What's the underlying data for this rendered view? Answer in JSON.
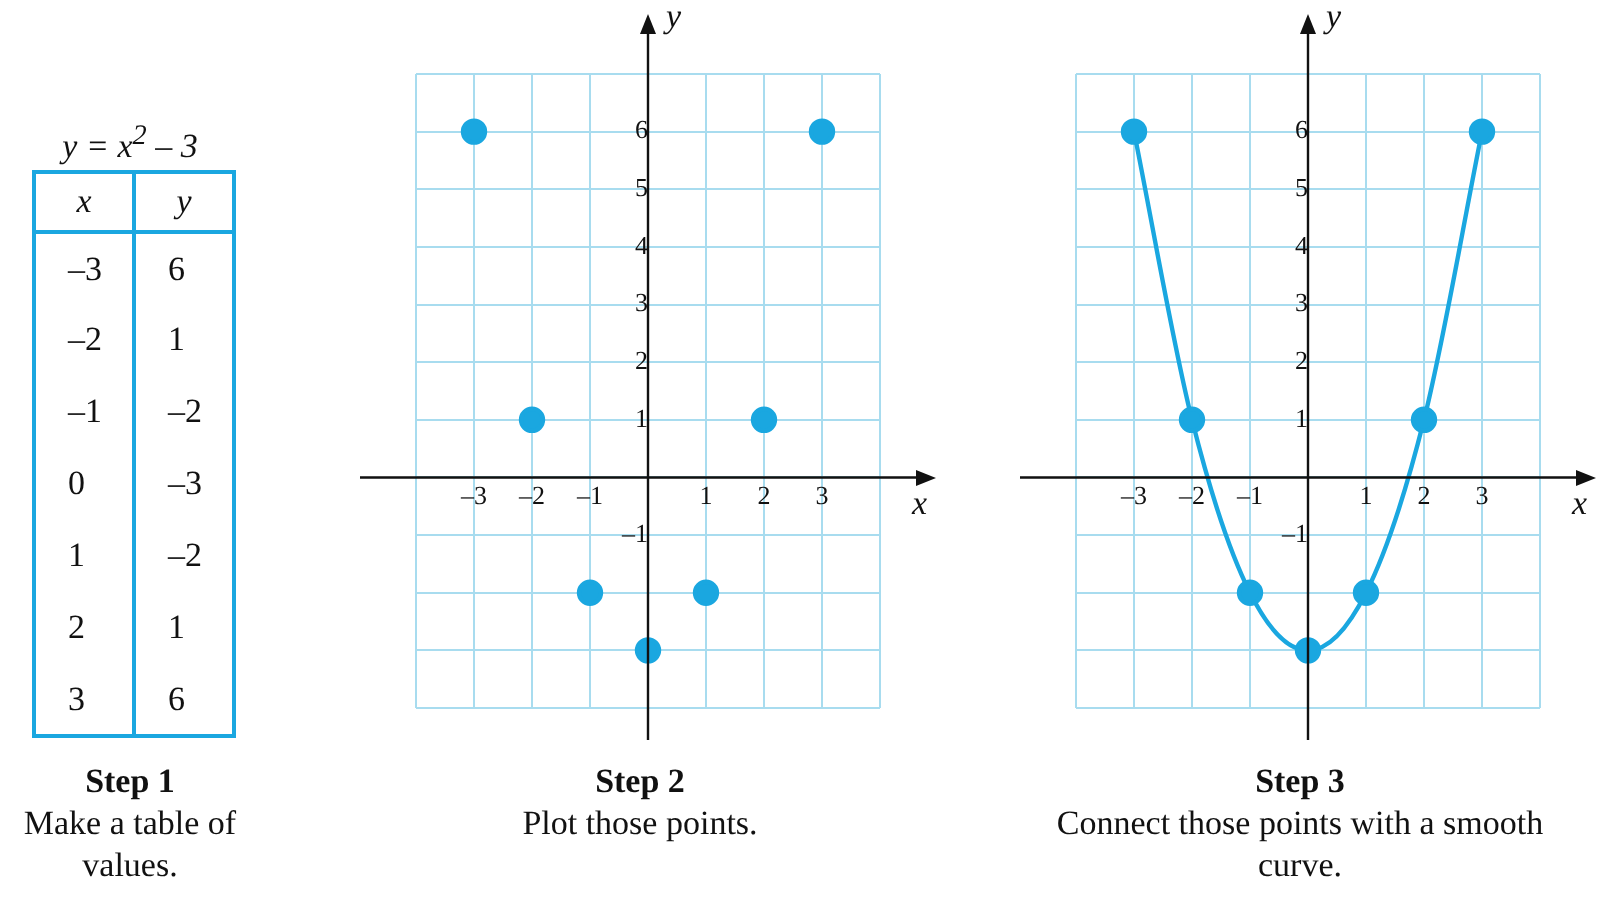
{
  "chart_data": [
    {
      "type": "other",
      "title": "y = x$^{2}$ – 3",
      "xlabel": "x",
      "ylabel": "y",
      "categories": [
        "–3",
        "–2",
        "–1",
        "0",
        "1",
        "2",
        "3"
      ],
      "value_labels": [
        "6",
        "1",
        "–2",
        "–3",
        "–2",
        "1",
        "6"
      ],
      "color": "#1aa7e0",
      "annotations": [
        "Step 1",
        "Make a table of values."
      ]
    },
    {
      "type": "scatter",
      "xlabel": "x",
      "ylabel": "y",
      "series": [
        {
          "color": "#1aa7e0",
          "x": [
            -3,
            -2,
            -1,
            0,
            1,
            2,
            3
          ],
          "values": [
            6,
            1,
            -2,
            -3,
            -2,
            1,
            6
          ]
        }
      ],
      "marker": "circle",
      "grid": true,
      "xlim": [
        -4,
        4
      ],
      "ylim": [
        -4,
        7
      ],
      "xticks": [
        {
          "value": -4,
          "label": null
        },
        {
          "value": -3,
          "label": "–3"
        },
        {
          "value": -2,
          "label": "–2"
        },
        {
          "value": -1,
          "label": "–1"
        },
        {
          "value": 0,
          "label": null
        },
        1,
        2,
        3,
        {
          "value": 4,
          "label": null
        }
      ],
      "yticks": [
        {
          "value": -4,
          "label": null
        },
        {
          "value": -3,
          "label": null
        },
        {
          "value": -2,
          "label": null
        },
        {
          "value": -1,
          "label": "–1"
        },
        {
          "value": 0,
          "label": null
        },
        1,
        2,
        3,
        4,
        5,
        6,
        {
          "value": 7,
          "label": null
        }
      ],
      "annotations": [
        "Step 2",
        "Plot those points."
      ]
    },
    {
      "type": "line",
      "xlabel": "x",
      "ylabel": "y",
      "series": [
        {
          "color": "#1aa7e0",
          "x": [
            -3,
            -2,
            -1,
            0,
            1,
            2,
            3
          ],
          "values": [
            6,
            1,
            -2,
            -3,
            -2,
            1,
            6
          ]
        }
      ],
      "marker": "circle",
      "line_style": "solid",
      "grid": true,
      "xlim": [
        -4,
        4
      ],
      "ylim": [
        -4,
        7
      ],
      "xticks": [
        {
          "value": -4,
          "label": null
        },
        {
          "value": -3,
          "label": "–3"
        },
        {
          "value": -2,
          "label": "–2"
        },
        {
          "value": -1,
          "label": "–1"
        },
        {
          "value": 0,
          "label": null
        },
        1,
        2,
        3,
        {
          "value": 4,
          "label": null
        }
      ],
      "yticks": [
        {
          "value": -4,
          "label": null
        },
        {
          "value": -3,
          "label": null
        },
        {
          "value": -2,
          "label": null
        },
        {
          "value": -1,
          "label": "–1"
        },
        {
          "value": 0,
          "label": null
        },
        1,
        2,
        3,
        4,
        5,
        6,
        {
          "value": 7,
          "label": null
        }
      ],
      "annotations": [
        "Step 3",
        "Connect those points with a smooth curve."
      ]
    }
  ]
}
